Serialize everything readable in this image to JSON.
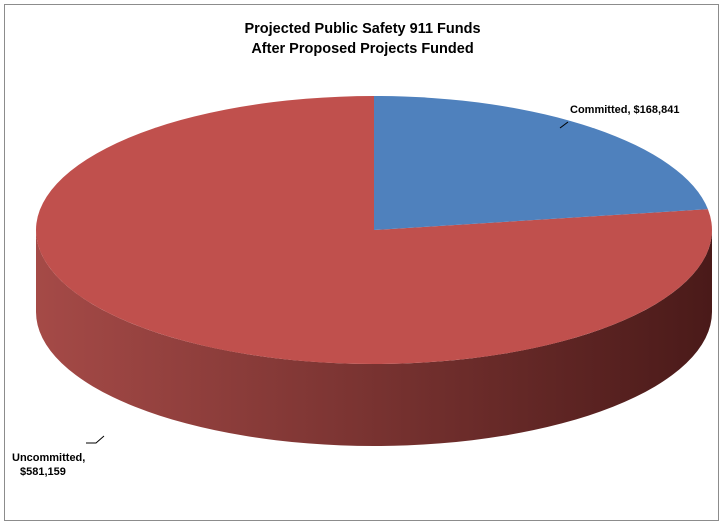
{
  "chart_data": {
    "type": "pie",
    "title_line1": "Projected Public Safety 911 Funds",
    "title_line2": "After Proposed Projects Funded",
    "slices": [
      {
        "name": "Committed",
        "value": 168841,
        "label": "Committed, $168,841",
        "color": "#4f81bd"
      },
      {
        "name": "Uncommitted",
        "value": 581159,
        "label_line1": "Uncommitted,",
        "label_line2": "$581,159",
        "color": "#c0504d"
      }
    ]
  }
}
